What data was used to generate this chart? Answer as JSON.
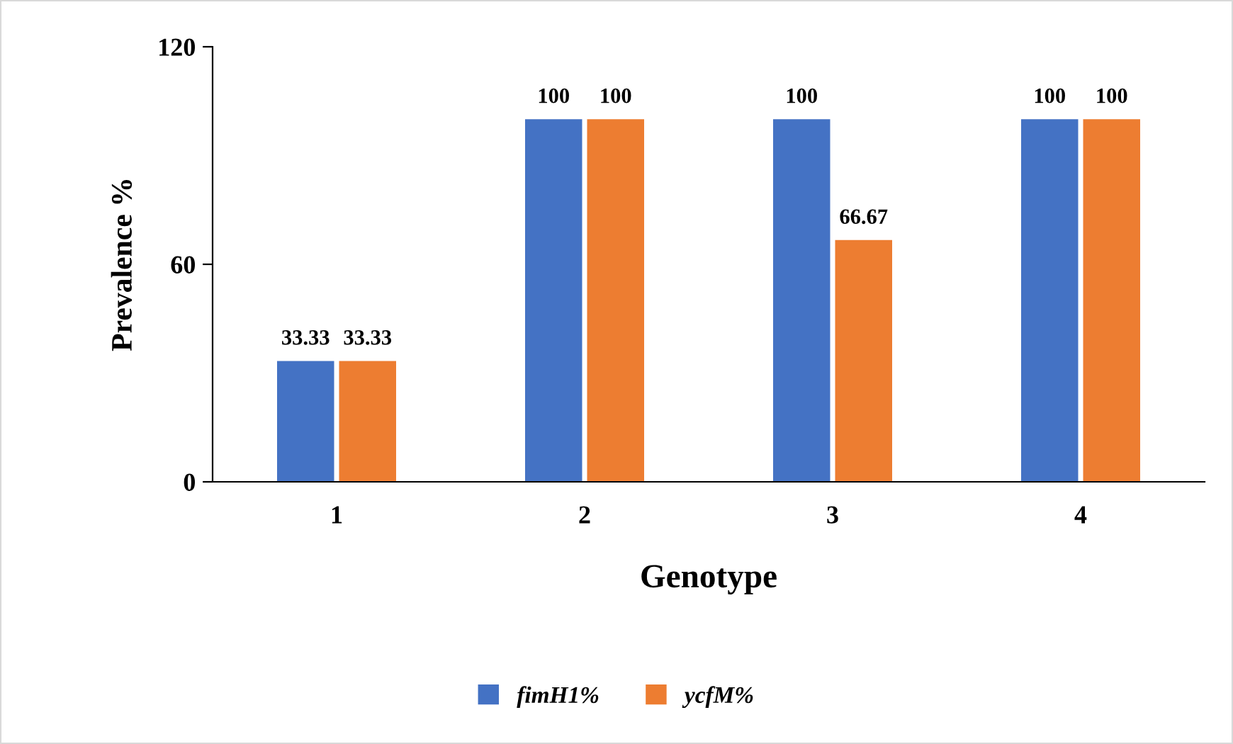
{
  "chart_data": {
    "type": "bar",
    "xlabel": "Genotype",
    "ylabel": "Prevalence %",
    "categories": [
      "1",
      "2",
      "3",
      "4"
    ],
    "series": [
      {
        "name": "fimH1%",
        "color": "#4472c4",
        "values": [
          33.33,
          100,
          100,
          100
        ]
      },
      {
        "name": "ycfM%",
        "color": "#ed7d31",
        "values": [
          33.33,
          100,
          66.67,
          100
        ]
      }
    ],
    "ylim": [
      0,
      120
    ],
    "yticks": [
      0,
      60,
      120
    ],
    "grid": false,
    "legend": "bottom",
    "data_labels": true
  }
}
